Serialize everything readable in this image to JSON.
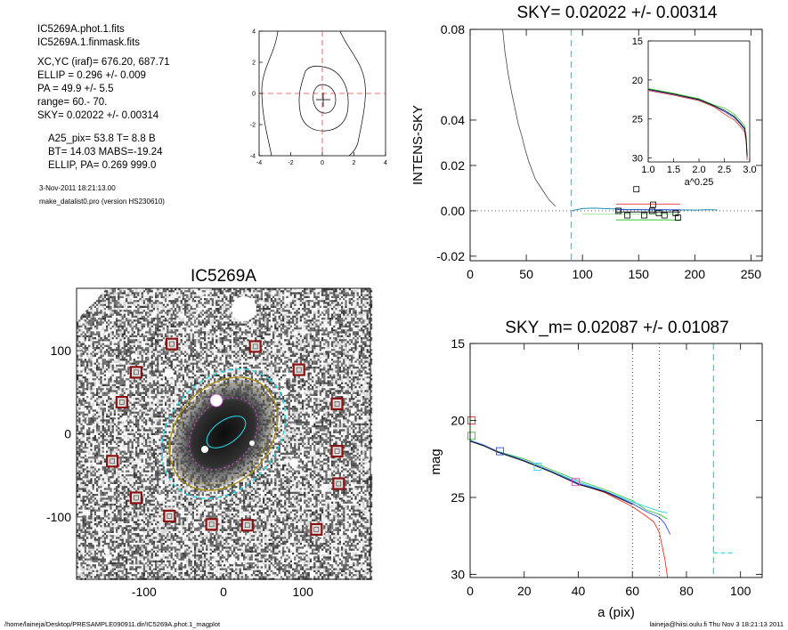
{
  "info": {
    "lines1": [
      "IC5269A.phot.1.fits",
      "IC5269A.1.finmask.fits"
    ],
    "lines2": [
      "XC,YC (iraf)=   676.20, 687.71",
      "ELLIP = 0.296 +/- 0.009",
      "PA    =  49.9 +/-   5.5",
      "range=  60.-   70.",
      "SKY= 0.02022 +/- 0.00314"
    ],
    "lines3": [
      "A25_pix= 53.8   T= 8.8  B",
      "BT=  14.03   MABS=-19.24",
      "ELLIP, PA= 0.269   999.0"
    ],
    "date": "3-Nov-2011 18:21:13.00",
    "program": "make_datalist0.pro (version HS230610)"
  },
  "footer": {
    "left": "/home/laineja/Desktop/PRESAMPLE090911.dir/IC5269A.phot.1_magplot",
    "right": "laineja@hiisi.oulu.fi  Thu Nov  3 18:21:13 2011"
  },
  "colors": {
    "cyan": "#22d4e6",
    "red": "#e8302c",
    "green": "#2ec42e",
    "blue": "#2f4fd6",
    "magenta": "#d24fd6",
    "darkred": "#8b1010",
    "gold": "#a88a10",
    "gray": "#888888"
  },
  "chart_data": [
    {
      "id": "contour",
      "type": "contour",
      "x_ticks": [
        -4,
        -2,
        0,
        2,
        4
      ],
      "y_ticks": [
        4,
        2,
        0,
        -2,
        -4
      ],
      "xlim": [
        -4,
        4
      ],
      "ylim": [
        -4,
        4
      ],
      "center_marker": [
        0,
        0
      ]
    },
    {
      "id": "image",
      "type": "image",
      "title": "IC5269A",
      "x_ticks": [
        -100,
        0,
        100
      ],
      "y_ticks": [
        100,
        0,
        -100
      ],
      "xlim": [
        -185,
        185
      ],
      "ylim": [
        -175,
        175
      ],
      "ellipse_center": [
        0,
        0
      ],
      "box_positions": [
        [
          -65,
          108
        ],
        [
          40,
          105
        ],
        [
          -110,
          74
        ],
        [
          95,
          77
        ],
        [
          -128,
          38
        ],
        [
          143,
          36
        ],
        [
          143,
          -21
        ],
        [
          -140,
          -33
        ],
        [
          145,
          -60
        ],
        [
          -110,
          -77
        ],
        [
          -68,
          -99
        ],
        [
          -15,
          -109
        ],
        [
          30,
          -110
        ],
        [
          117,
          -115
        ]
      ]
    },
    {
      "id": "sky",
      "type": "line",
      "title": "SKY= 0.02022 +/- 0.00314",
      "ylabel": "INTENS-SKY",
      "xlim": [
        0,
        260
      ],
      "ylim": [
        -0.022,
        0.08
      ],
      "x_ticks": [
        0,
        50,
        100,
        150,
        200,
        250
      ],
      "y_ticks": [
        0.08,
        0.04,
        0.02,
        0.0,
        -0.02
      ],
      "y_tick_labels": [
        "0.08",
        "0.04",
        "0.02",
        "0.00",
        "-0.02"
      ],
      "vline_x": 90,
      "profile": [
        [
          29,
          0.08
        ],
        [
          31,
          0.07
        ],
        [
          34,
          0.06
        ],
        [
          37,
          0.052
        ],
        [
          40,
          0.045
        ],
        [
          43,
          0.038
        ],
        [
          46,
          0.033
        ],
        [
          49,
          0.027
        ],
        [
          52,
          0.022
        ],
        [
          55,
          0.018
        ],
        [
          58,
          0.014
        ],
        [
          62,
          0.011
        ],
        [
          66,
          0.008
        ],
        [
          70,
          0.005
        ],
        [
          74,
          0.003
        ],
        [
          76,
          0.002
        ]
      ],
      "sky_profile": [
        [
          90,
          0.0
        ],
        [
          95,
          0.0005
        ],
        [
          100,
          0.001
        ],
        [
          110,
          0.0012
        ],
        [
          120,
          0.001
        ],
        [
          130,
          0.0008
        ],
        [
          140,
          0.0005
        ],
        [
          150,
          0.0006
        ],
        [
          160,
          0.0004
        ],
        [
          170,
          0.0005
        ],
        [
          180,
          0.0003
        ],
        [
          190,
          0.0004
        ],
        [
          200,
          0.0003
        ],
        [
          210,
          0.0005
        ],
        [
          220,
          0.0004
        ]
      ],
      "squares": [
        [
          132,
          0.0
        ],
        [
          140,
          -0.002
        ],
        [
          155,
          -0.002
        ],
        [
          162,
          0.0
        ],
        [
          163,
          0.0027
        ],
        [
          168,
          -0.001
        ],
        [
          173,
          -0.002
        ],
        [
          183,
          -0.001
        ],
        [
          185,
          -0.003
        ],
        [
          148,
          0.0095
        ]
      ],
      "inset": {
        "x_ticks": [
          1.0,
          1.5,
          2.0,
          2.5,
          3.0
        ],
        "x_tick_labels": [
          "1.0",
          "1.5",
          "2.0",
          "2.5",
          "3.0"
        ],
        "y_ticks": [
          15,
          20,
          25,
          30
        ],
        "xlim": [
          1.0,
          3.0
        ],
        "ylim": [
          15,
          30.5
        ],
        "xlabel": "a^0.25",
        "curve": [
          [
            1.0,
            21.2
          ],
          [
            1.5,
            21.8
          ],
          [
            2.0,
            22.5
          ],
          [
            2.3,
            23.3
          ],
          [
            2.5,
            23.9
          ],
          [
            2.7,
            24.7
          ],
          [
            2.8,
            25.4
          ],
          [
            2.9,
            26.2
          ],
          [
            2.93,
            27.5
          ],
          [
            2.95,
            29.8
          ]
        ]
      }
    },
    {
      "id": "mag",
      "type": "line",
      "title": "SKY_m=  0.02087 +/- 0.01087",
      "xlabel": "a (pix)",
      "ylabel": "mag",
      "xlim": [
        0,
        108
      ],
      "ylim": [
        15,
        30.2
      ],
      "x_ticks": [
        0,
        20,
        40,
        60,
        80,
        100
      ],
      "y_ticks": [
        15,
        20,
        25,
        30
      ],
      "vlines_dotted": [
        60,
        70
      ],
      "cyan_vline": 90,
      "cyan_segment": [
        [
          90,
          28.6
        ],
        [
          98,
          28.6
        ]
      ],
      "series": [
        {
          "color_key": "red",
          "values": [
            [
              0,
              21.3
            ],
            [
              5,
              21.6
            ],
            [
              10,
              22.0
            ],
            [
              20,
              22.6
            ],
            [
              30,
              23.3
            ],
            [
              40,
              24.1
            ],
            [
              50,
              24.7
            ],
            [
              60,
              25.6
            ],
            [
              65,
              26.2
            ],
            [
              68,
              26.6
            ],
            [
              70,
              27.3
            ],
            [
              72,
              29.0
            ],
            [
              73,
              30.2
            ]
          ]
        },
        {
          "color_key": "green",
          "values": [
            [
              0,
              21.3
            ],
            [
              5,
              21.6
            ],
            [
              10,
              22.0
            ],
            [
              20,
              22.5
            ],
            [
              30,
              23.2
            ],
            [
              40,
              23.9
            ],
            [
              50,
              24.5
            ],
            [
              60,
              25.2
            ],
            [
              65,
              25.8
            ],
            [
              70,
              26.1
            ],
            [
              73,
              26.4
            ]
          ]
        },
        {
          "color_key": "cyan",
          "values": [
            [
              0,
              21.3
            ],
            [
              5,
              21.6
            ],
            [
              10,
              22.0
            ],
            [
              20,
              22.6
            ],
            [
              30,
              23.3
            ],
            [
              40,
              24.0
            ],
            [
              50,
              24.6
            ],
            [
              60,
              25.3
            ],
            [
              65,
              25.6
            ],
            [
              70,
              25.9
            ],
            [
              73,
              26.0
            ]
          ]
        },
        {
          "color_key": "blue",
          "values": [
            [
              0,
              21.3
            ],
            [
              5,
              21.6
            ],
            [
              10,
              22.0
            ],
            [
              20,
              22.6
            ],
            [
              30,
              23.3
            ],
            [
              40,
              24.1
            ],
            [
              50,
              24.6
            ],
            [
              60,
              25.4
            ],
            [
              65,
              25.9
            ],
            [
              70,
              26.3
            ],
            [
              72,
              26.7
            ],
            [
              74,
              27.4
            ]
          ]
        }
      ],
      "markers": [
        {
          "color_key": "red",
          "x": 0.5,
          "y": 20.0
        },
        {
          "color_key": "green",
          "x": 0.5,
          "y": 21.0
        },
        {
          "color_key": "blue",
          "x": 11,
          "y": 22.0
        },
        {
          "color_key": "cyan",
          "x": 25,
          "y": 23.0
        },
        {
          "color_key": "magenta",
          "x": 39,
          "y": 24.0
        }
      ]
    }
  ]
}
